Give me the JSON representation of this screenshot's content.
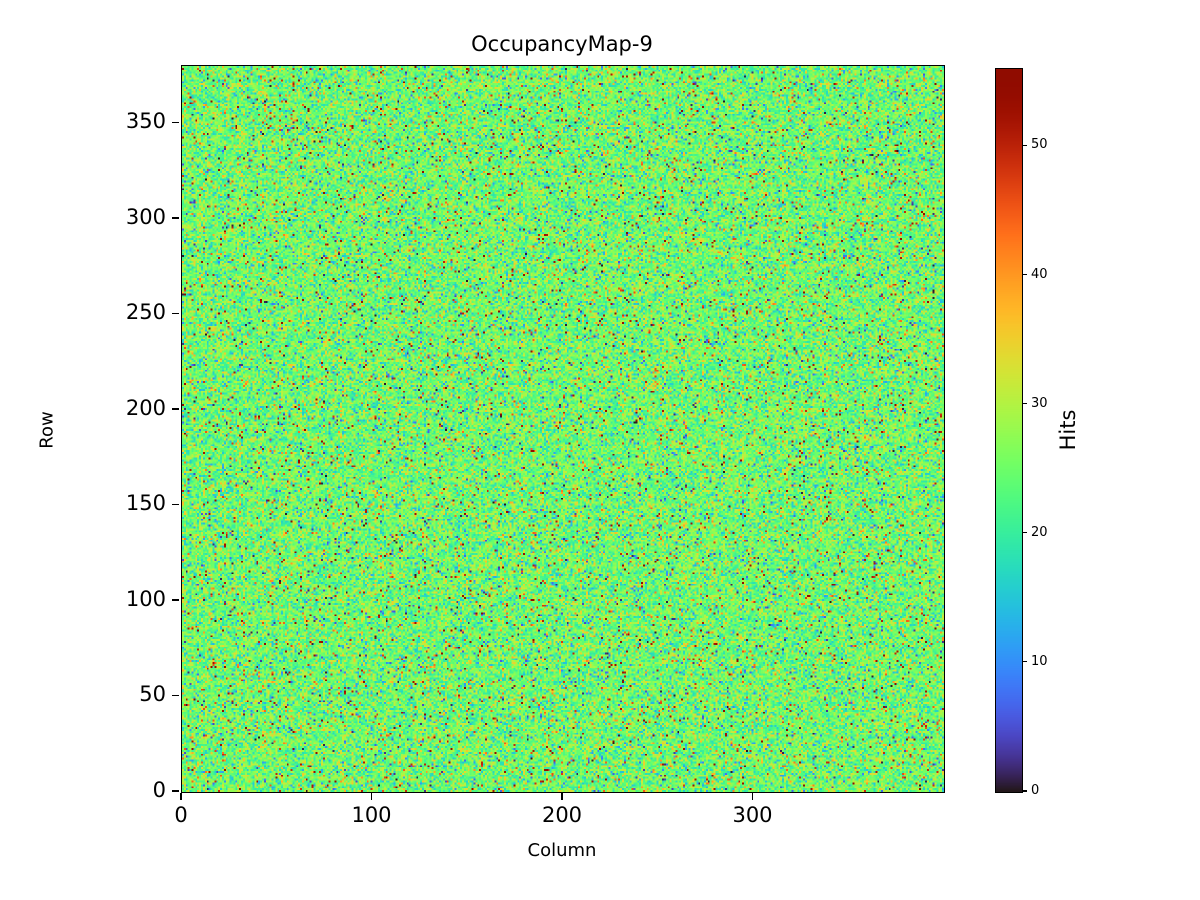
{
  "figure": {
    "title": "OccupancyMap-9",
    "xlabel": "Column",
    "ylabel": "Row",
    "colorbar_label": "Hits",
    "background_color": "#ffffff"
  },
  "chart_data": {
    "type": "heatmap",
    "title": "OccupancyMap-9",
    "xlabel": "Column",
    "ylabel": "Row",
    "grid": {
      "columns": 400,
      "rows": 380
    },
    "x_range": [
      0,
      400
    ],
    "y_range": [
      0,
      380
    ],
    "xticks": [
      0,
      100,
      200,
      300
    ],
    "yticks": [
      0,
      50,
      100,
      150,
      200,
      250,
      300,
      350
    ],
    "origin": "lower",
    "colormap": "turbo",
    "value_range": [
      0,
      56
    ],
    "colorbar": {
      "label": "Hits",
      "ticks": [
        0,
        10,
        20,
        30,
        40,
        50
      ]
    },
    "data_description": "Per-pixel random hit counts; mostly clustered near the mean (green/teal mid-range of the turbo colormap) with scattered outlier pixels over the full 0-56 range (dark blue lows, red/dark-red highs).",
    "distribution": {
      "mean": 25,
      "std": 5,
      "outlier_fraction": 0.1
    },
    "seed": 9,
    "grid_lines": false,
    "legend": "colorbar-right"
  }
}
